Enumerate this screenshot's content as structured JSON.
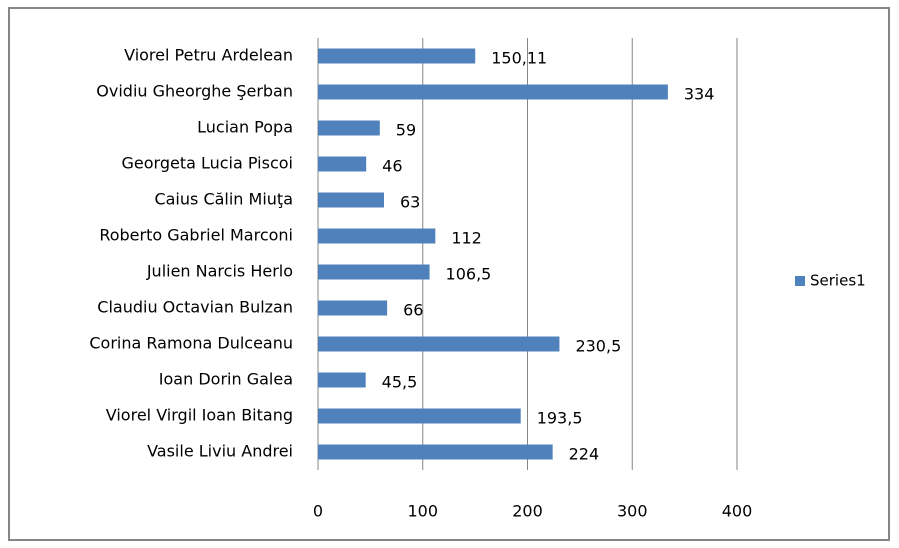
{
  "chart_data": {
    "type": "bar",
    "orientation": "horizontal",
    "categories": [
      "Viorel Petru Ardelean",
      "Ovidiu Gheorghe Şerban",
      "Lucian Popa",
      "Georgeta Lucia Piscoi",
      "Caius Călin Miuţa",
      "Roberto Gabriel Marconi",
      "Julien Narcis Herlo",
      "Claudiu Octavian Bulzan",
      "Corina Ramona Dulceanu",
      "Ioan Dorin Galea",
      "Viorel Virgil Ioan Bitang",
      "Vasile Liviu Andrei"
    ],
    "series": [
      {
        "name": "Series1",
        "color": "#4f81bd",
        "values": [
          150.11,
          334,
          59,
          46,
          63,
          112,
          106.5,
          66,
          230.5,
          45.5,
          193.5,
          224
        ],
        "value_labels": [
          "150,11",
          "334",
          "59",
          "46",
          "63",
          "112",
          "106,5",
          "66",
          "230,5",
          "45,5",
          "193,5",
          "224"
        ]
      }
    ],
    "xlim": [
      0,
      400
    ],
    "xticks": [
      0,
      100,
      200,
      300,
      400
    ],
    "grid": true,
    "legend": "right"
  }
}
